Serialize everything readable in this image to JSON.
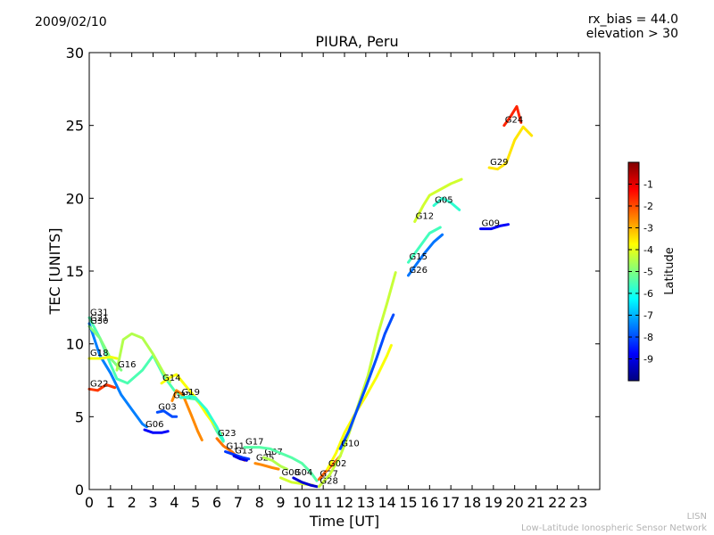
{
  "header": {
    "date": "2009/02/10",
    "rx_bias": "rx_bias = 44.0",
    "elevation": "elevation > 30"
  },
  "footer": {
    "line1": "LISN",
    "line2": "Low-Latitude Ionospheric Sensor Network"
  },
  "chart_data": {
    "type": "scatter",
    "title": "PIURA, Peru",
    "xlabel": "Time [UT]",
    "ylabel": "TEC [UNITS]",
    "xlim": [
      0,
      24
    ],
    "ylim": [
      0,
      30
    ],
    "xticks": [
      "0",
      "1",
      "2",
      "3",
      "4",
      "5",
      "6",
      "7",
      "8",
      "9",
      "10",
      "11",
      "12",
      "13",
      "14",
      "15",
      "16",
      "17",
      "18",
      "19",
      "20",
      "21",
      "22",
      "23"
    ],
    "yticks": [
      "0",
      "5",
      "10",
      "15",
      "20",
      "25",
      "30"
    ],
    "grid": false,
    "colorbar": {
      "label": "Latitude",
      "range": [
        -10,
        0
      ],
      "ticks": [
        "-9",
        "-8",
        "-7",
        "-6",
        "-5",
        "-4",
        "-3",
        "-2",
        "-1"
      ],
      "colormap": "jet",
      "colors": [
        "#00007f",
        "#0000ff",
        "#007fff",
        "#00ffff",
        "#7fff7f",
        "#ffff00",
        "#ff7f00",
        "#ff0000",
        "#7f0000"
      ]
    },
    "series": [
      {
        "name": "G31",
        "lat": -5.5,
        "points": [
          [
            0,
            11.8
          ],
          [
            0.5,
            10.4
          ],
          [
            1,
            8.6
          ],
          [
            1.3,
            7.6
          ],
          [
            1.8,
            7.3
          ],
          [
            2.5,
            8.2
          ],
          [
            3,
            9.2
          ],
          [
            3.5,
            7.8
          ],
          [
            4,
            6.8
          ],
          [
            4.5,
            6.3
          ],
          [
            5,
            6.2
          ],
          [
            5.5,
            5.4
          ],
          [
            6,
            4.0
          ],
          [
            6.3,
            3.3
          ]
        ]
      },
      {
        "name": "G21",
        "lat": -7.5,
        "points": [
          [
            0,
            11.4
          ],
          [
            0.5,
            9.2
          ],
          [
            1,
            8.0
          ],
          [
            1.5,
            6.5
          ],
          [
            2,
            5.5
          ],
          [
            2.5,
            4.5
          ],
          [
            2.7,
            4.3
          ]
        ]
      },
      {
        "name": "G30",
        "lat": -5.0,
        "points": [
          [
            0,
            11.2
          ],
          [
            0.5,
            10.4
          ],
          [
            1,
            9.0
          ],
          [
            1.5,
            8.2
          ]
        ]
      },
      {
        "name": "G18",
        "lat": -3.9,
        "points": [
          [
            0,
            9.0
          ],
          [
            0.5,
            9.0
          ],
          [
            1,
            9.1
          ],
          [
            1.3,
            9.0
          ]
        ]
      },
      {
        "name": "G22",
        "lat": -1.8,
        "points": [
          [
            0,
            6.9
          ],
          [
            0.4,
            6.8
          ],
          [
            0.8,
            7.2
          ],
          [
            1.2,
            7.0
          ]
        ]
      },
      {
        "name": "G16",
        "lat": -4.5,
        "points": [
          [
            1.3,
            8.2
          ],
          [
            1.6,
            10.3
          ],
          [
            2,
            10.7
          ],
          [
            2.5,
            10.4
          ],
          [
            3,
            9.3
          ],
          [
            3.5,
            8.0
          ],
          [
            3.8,
            7.4
          ]
        ]
      },
      {
        "name": "G14",
        "lat": -3.8,
        "points": [
          [
            3.4,
            7.3
          ],
          [
            3.8,
            7.7
          ],
          [
            4.1,
            7.9
          ],
          [
            4.6,
            7.0
          ],
          [
            5,
            6.3
          ],
          [
            5.5,
            5.2
          ],
          [
            6,
            4.2
          ],
          [
            6.2,
            3.8
          ]
        ]
      },
      {
        "name": "G32",
        "lat": -2.6,
        "points": [
          [
            3.9,
            6.1
          ],
          [
            4.1,
            6.8
          ],
          [
            4.4,
            6.5
          ],
          [
            4.8,
            5.1
          ],
          [
            5.1,
            4.0
          ],
          [
            5.3,
            3.4
          ]
        ]
      },
      {
        "name": "G19",
        "lat": -5.8,
        "points": [
          [
            4.3,
            6.3
          ],
          [
            4.8,
            6.4
          ],
          [
            5,
            6.3
          ],
          [
            5.5,
            5.5
          ],
          [
            6,
            4.3
          ],
          [
            6.3,
            3.4
          ]
        ]
      },
      {
        "name": "G03",
        "lat": -8.0,
        "points": [
          [
            3.2,
            5.3
          ],
          [
            3.5,
            5.4
          ],
          [
            3.9,
            5.0
          ],
          [
            4.1,
            5.0
          ]
        ]
      },
      {
        "name": "G06",
        "lat": -8.8,
        "points": [
          [
            2.6,
            4.1
          ],
          [
            3,
            3.9
          ],
          [
            3.4,
            3.9
          ],
          [
            3.7,
            4.0
          ]
        ]
      },
      {
        "name": "G23",
        "lat": -2.4,
        "points": [
          [
            6.0,
            3.5
          ],
          [
            6.3,
            3.0
          ],
          [
            6.7,
            2.6
          ],
          [
            7,
            2.2
          ],
          [
            7.3,
            2.0
          ]
        ]
      },
      {
        "name": "G11",
        "lat": -8.2,
        "points": [
          [
            6.4,
            2.6
          ],
          [
            6.8,
            2.4
          ],
          [
            7.2,
            2.2
          ],
          [
            7.5,
            2.1
          ]
        ]
      },
      {
        "name": "G13",
        "lat": -9.0,
        "points": [
          [
            6.8,
            2.3
          ],
          [
            7.1,
            2.1
          ],
          [
            7.4,
            2.0
          ]
        ]
      },
      {
        "name": "G25",
        "lat": -2.6,
        "points": [
          [
            7.8,
            1.8
          ],
          [
            8.1,
            1.7
          ],
          [
            8.6,
            1.5
          ],
          [
            8.9,
            1.4
          ]
        ]
      },
      {
        "name": "G07",
        "lat": -4.5,
        "points": [
          [
            8.2,
            2.2
          ],
          [
            8.6,
            2.0
          ],
          [
            9,
            1.6
          ],
          [
            9.3,
            1.4
          ]
        ]
      },
      {
        "name": "G17",
        "lat": -5.4,
        "points": [
          [
            7.3,
            2.9
          ],
          [
            8,
            2.9
          ],
          [
            8.5,
            2.8
          ],
          [
            9,
            2.5
          ],
          [
            9.5,
            2.2
          ],
          [
            10,
            1.8
          ],
          [
            10.4,
            1.2
          ],
          [
            10.7,
            0.6
          ]
        ]
      },
      {
        "name": "G08",
        "lat": -4.2,
        "points": [
          [
            9.0,
            0.8
          ],
          [
            9.5,
            0.5
          ],
          [
            10,
            0.4
          ],
          [
            10.5,
            0.3
          ]
        ]
      },
      {
        "name": "G04",
        "lat": -9.2,
        "points": [
          [
            9.6,
            0.8
          ],
          [
            10,
            0.5
          ],
          [
            10.4,
            0.3
          ],
          [
            10.7,
            0.2
          ]
        ]
      },
      {
        "name": "G27",
        "lat": -2.2,
        "points": [
          [
            10.8,
            0.7
          ],
          [
            11.1,
            1.2
          ],
          [
            11.5,
            1.8
          ],
          [
            11.8,
            2.3
          ]
        ]
      },
      {
        "name": "G28",
        "lat": -4.3,
        "points": [
          [
            10.8,
            0.2
          ],
          [
            11.3,
            1.0
          ],
          [
            11.8,
            2.3
          ],
          [
            12.2,
            3.8
          ],
          [
            12.6,
            5.6
          ],
          [
            13.1,
            7.8
          ],
          [
            13.6,
            10.8
          ],
          [
            14,
            12.8
          ],
          [
            14.4,
            14.9
          ]
        ]
      },
      {
        "name": "G02",
        "lat": -3.8,
        "points": [
          [
            11.2,
            1.4
          ],
          [
            11.6,
            2.5
          ],
          [
            12,
            3.9
          ],
          [
            12.5,
            5.2
          ],
          [
            13,
            6.4
          ],
          [
            13.5,
            7.7
          ],
          [
            14,
            9.2
          ],
          [
            14.2,
            9.9
          ]
        ]
      },
      {
        "name": "G10",
        "lat": -8.0,
        "points": [
          [
            11.8,
            2.8
          ],
          [
            12.2,
            4.0
          ],
          [
            12.6,
            5.5
          ],
          [
            13,
            7.0
          ],
          [
            13.5,
            9.0
          ],
          [
            13.9,
            10.7
          ],
          [
            14.3,
            12.0
          ]
        ]
      },
      {
        "name": "G26",
        "lat": -7.6,
        "points": [
          [
            15,
            14.7
          ],
          [
            15.4,
            15.5
          ],
          [
            15.8,
            16.3
          ],
          [
            16.2,
            17.0
          ],
          [
            16.6,
            17.5
          ]
        ]
      },
      {
        "name": "G15",
        "lat": -5.6,
        "points": [
          [
            15,
            15.6
          ],
          [
            15.5,
            16.6
          ],
          [
            16,
            17.6
          ],
          [
            16.5,
            18.0
          ]
        ]
      },
      {
        "name": "G12",
        "lat": -4.2,
        "points": [
          [
            15.3,
            18.4
          ],
          [
            15.7,
            19.5
          ],
          [
            16,
            20.2
          ],
          [
            16.5,
            20.6
          ],
          [
            17,
            21.0
          ],
          [
            17.5,
            21.3
          ]
        ]
      },
      {
        "name": "G05",
        "lat": -5.8,
        "points": [
          [
            16.2,
            19.5
          ],
          [
            16.6,
            20.0
          ],
          [
            17,
            19.7
          ],
          [
            17.4,
            19.2
          ]
        ]
      },
      {
        "name": "G09",
        "lat": -8.8,
        "points": [
          [
            18.4,
            17.9
          ],
          [
            18.9,
            17.9
          ],
          [
            19.3,
            18.1
          ],
          [
            19.7,
            18.2
          ]
        ]
      },
      {
        "name": "G29",
        "lat": -3.5,
        "points": [
          [
            18.8,
            22.1
          ],
          [
            19.2,
            22.0
          ],
          [
            19.6,
            22.4
          ],
          [
            20,
            24.0
          ],
          [
            20.4,
            24.9
          ],
          [
            20.8,
            24.3
          ]
        ]
      },
      {
        "name": "G24",
        "lat": -1.6,
        "points": [
          [
            19.5,
            25.0
          ],
          [
            19.8,
            25.6
          ],
          [
            20.1,
            26.3
          ],
          [
            20.3,
            25.2
          ]
        ]
      }
    ]
  }
}
